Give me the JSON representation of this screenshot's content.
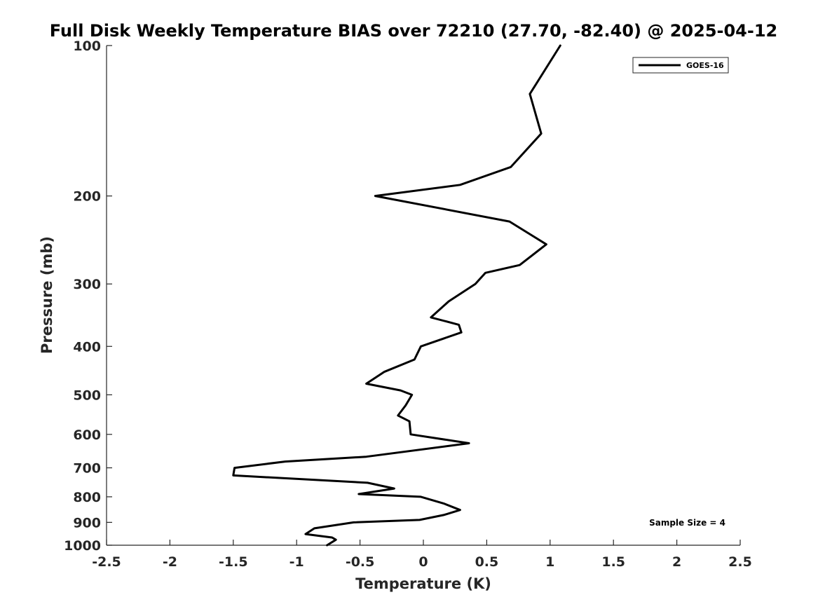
{
  "chart_data": {
    "type": "line",
    "title": "Full Disk Weekly Temperature BIAS over 72210 (27.70, -82.40) @ 2025-04-12",
    "xlabel": "Temperature (K)",
    "ylabel": "Pressure (mb)",
    "xlim": [
      -2.5,
      2.5
    ],
    "ylim": [
      100,
      1000
    ],
    "y_scale": "log",
    "y_reversed": true,
    "x_ticks": [
      "-2.5",
      "-2",
      "-1.5",
      "-1",
      "-0.5",
      "0",
      "0.5",
      "1",
      "1.5",
      "2",
      "2.5"
    ],
    "y_ticks": [
      "100",
      "200",
      "300",
      "400",
      "500",
      "600",
      "700",
      "800",
      "900",
      "1000"
    ],
    "grid": false,
    "legend_position": "top-right",
    "annotation": "Sample Size = 4",
    "series": [
      {
        "name": "GOES-16",
        "color": "#000000",
        "points": [
          [
            1.08,
            100
          ],
          [
            0.84,
            125
          ],
          [
            0.93,
            150
          ],
          [
            0.69,
            175
          ],
          [
            0.29,
            190
          ],
          [
            -0.38,
            200
          ],
          [
            0.68,
            225
          ],
          [
            0.97,
            250
          ],
          [
            0.76,
            275
          ],
          [
            0.49,
            285
          ],
          [
            0.41,
            300
          ],
          [
            0.2,
            325
          ],
          [
            0.06,
            350
          ],
          [
            0.28,
            362
          ],
          [
            0.3,
            375
          ],
          [
            -0.02,
            400
          ],
          [
            -0.07,
            425
          ],
          [
            -0.31,
            450
          ],
          [
            -0.45,
            475
          ],
          [
            -0.18,
            490
          ],
          [
            -0.09,
            500
          ],
          [
            -0.14,
            525
          ],
          [
            -0.2,
            550
          ],
          [
            -0.11,
            565
          ],
          [
            -0.1,
            600
          ],
          [
            0.36,
            625
          ],
          [
            -0.45,
            665
          ],
          [
            -1.09,
            680
          ],
          [
            -1.49,
            700
          ],
          [
            -1.5,
            725
          ],
          [
            -0.44,
            750
          ],
          [
            -0.23,
            770
          ],
          [
            -0.51,
            790
          ],
          [
            -0.02,
            800
          ],
          [
            0.16,
            825
          ],
          [
            0.29,
            850
          ],
          [
            0.16,
            870
          ],
          [
            -0.03,
            890
          ],
          [
            -0.55,
            900
          ],
          [
            -0.86,
            925
          ],
          [
            -0.93,
            950
          ],
          [
            -0.72,
            965
          ],
          [
            -0.69,
            975
          ],
          [
            -0.76,
            1000
          ]
        ]
      }
    ]
  }
}
